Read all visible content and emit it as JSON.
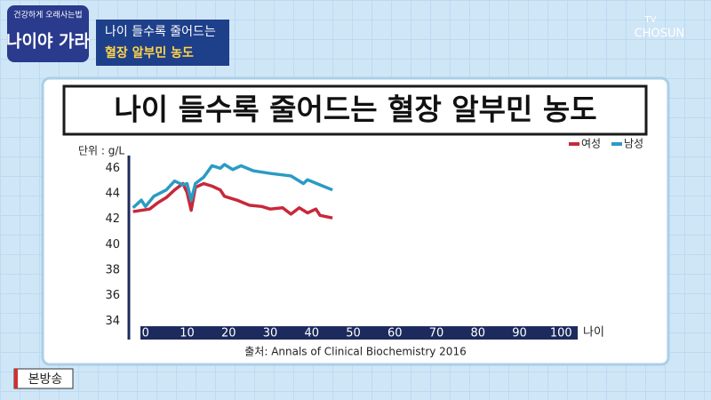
{
  "chart_data": {
    "type": "line",
    "title": "나이 들수록 줄어드는 혈장 알부민 농도",
    "y_label": "단위 : g/L",
    "x_label": "나이",
    "source": "출처: Annals of Clinical Biochemistry 2016",
    "legend": "upper right",
    "grid": false,
    "xlim": [
      -4,
      104
    ],
    "xticks": [
      0,
      10,
      20,
      30,
      40,
      50,
      60,
      70,
      80,
      90,
      100
    ],
    "ylim": [
      33.6,
      47
    ],
    "yticks": [
      34,
      36,
      38,
      40,
      42,
      44,
      46
    ],
    "series": [
      {
        "name": "여성",
        "color": "#c8283a",
        "x": [
          -3,
          1,
          3,
          5,
          7,
          9,
          10,
          11,
          12,
          14,
          16,
          18,
          19,
          22,
          25,
          28,
          30,
          33,
          35,
          37,
          39,
          41,
          42,
          45
        ],
        "values": [
          42.6,
          42.8,
          43.3,
          43.7,
          44.3,
          44.8,
          44.1,
          42.7,
          44.5,
          44.8,
          44.6,
          44.3,
          43.8,
          43.5,
          43.1,
          43.0,
          42.8,
          42.9,
          42.4,
          42.9,
          42.5,
          42.8,
          42.3,
          42.1
        ]
      },
      {
        "name": "남성",
        "color": "#2a9bc4",
        "x": [
          -3,
          -1,
          0,
          2,
          5,
          7,
          9,
          10,
          11,
          12,
          14,
          16,
          18,
          19,
          21,
          23,
          26,
          30,
          35,
          38,
          39,
          42,
          45
        ],
        "values": [
          42.9,
          43.5,
          43.0,
          43.8,
          44.3,
          45.0,
          44.7,
          44.8,
          43.5,
          44.8,
          45.3,
          46.2,
          46.0,
          46.3,
          45.9,
          46.2,
          45.8,
          45.6,
          45.4,
          44.8,
          45.1,
          44.7,
          44.3
        ]
      }
    ]
  },
  "overlay": {
    "logo_top": "건강하게 오래사는법",
    "logo_main": "나이야 가라",
    "caption_line1": "나이 들수록 줄어드는",
    "caption_line2": "혈장 알부민 농도",
    "channel_tv": "TV",
    "channel_name": "CHOSUN",
    "badge": "본방송"
  }
}
